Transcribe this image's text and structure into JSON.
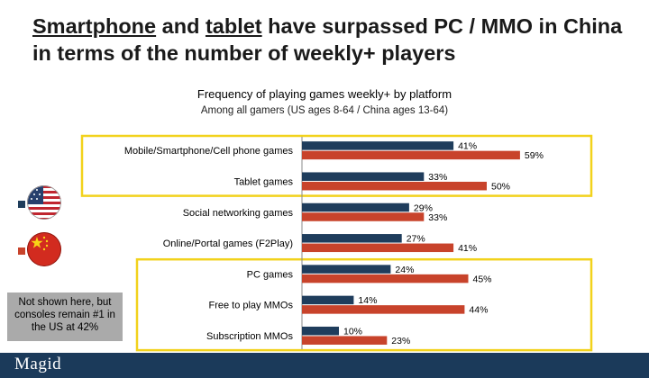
{
  "headline": {
    "w1": "Smartphone",
    "w2": " and ",
    "w3": "tablet",
    "rest": " have surpassed PC / MMO in China in terms of the number of weekly+ players"
  },
  "chart_data": {
    "type": "bar",
    "orientation": "horizontal",
    "title": "Frequency of playing games weekly+ by platform",
    "subtitle": "Among all gamers (US ages 8-64 / China ages 13-64)",
    "categories": [
      "Mobile/Smartphone/Cell phone games",
      "Tablet games",
      "Social networking games",
      "Online/Portal games (F2Play)",
      "PC games",
      "Free to play MMOs",
      "Subscription MMOs"
    ],
    "series": [
      {
        "values": [
          41,
          33,
          29,
          27,
          24,
          14,
          10
        ],
        "color": "#1f3d5c"
      },
      {
        "values": [
          59,
          50,
          33,
          41,
          45,
          44,
          23
        ],
        "color": "#c8432b"
      }
    ],
    "value_suffix": "%",
    "xlim": [
      0,
      100
    ],
    "highlight_groups": [
      [
        0,
        1
      ],
      [
        4,
        5,
        6
      ]
    ],
    "highlight_color": "#f2d21c"
  },
  "legend": [
    {
      "icon": "us-flag-icon",
      "color": "#1f3d5c"
    },
    {
      "icon": "china-flag-icon",
      "color": "#c8432b"
    }
  ],
  "note": {
    "text": "Not shown here, but consoles remain #1 in the US at 42%"
  },
  "footer": {
    "logo": "Magid",
    "color": "#1b3a5a"
  }
}
